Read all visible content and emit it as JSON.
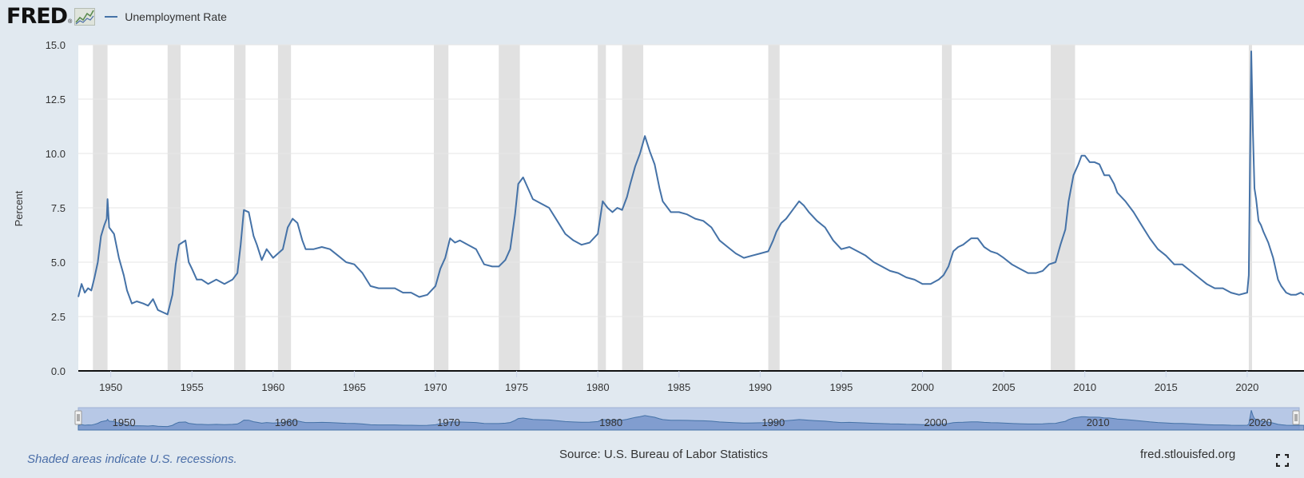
{
  "header": {
    "logo_text": "FRED",
    "registered_mark": "®",
    "legend_label": "Unemployment Rate"
  },
  "footer": {
    "recession_note": "Shaded areas indicate U.S. recessions.",
    "source": "Source: U.S. Bureau of Labor Statistics",
    "site": "fred.stlouisfed.org"
  },
  "icons": [
    "fred-graph-icon",
    "fullscreen-icon",
    "navigator-handle-icon"
  ],
  "colors": {
    "series": "#4572a7",
    "recession": "#e1e1e1",
    "background": "#e1e9f0",
    "navigator_fill": "#b7c8e6",
    "navigator_area": "#6f8fc7"
  },
  "chart_data": {
    "type": "line",
    "title": "",
    "xlabel": "",
    "ylabel": "Percent",
    "xlim": [
      1948.0,
      2023.5
    ],
    "ylim": [
      0,
      15
    ],
    "y_ticks": [
      "0.0",
      "2.5",
      "5.0",
      "7.5",
      "10.0",
      "12.5",
      "15.0"
    ],
    "x_ticks": [
      "1950",
      "1955",
      "1960",
      "1965",
      "1970",
      "1975",
      "1980",
      "1985",
      "1990",
      "1995",
      "2000",
      "2005",
      "2010",
      "2015",
      "2020"
    ],
    "navigator_labels": [
      "1950",
      "1960",
      "1970",
      "1980",
      "1990",
      "2000",
      "2010",
      "2020"
    ],
    "grid": true,
    "recessions": [
      [
        1948.9,
        1949.8
      ],
      [
        1953.5,
        1954.3
      ],
      [
        1957.6,
        1958.3
      ],
      [
        1960.3,
        1961.1
      ],
      [
        1969.9,
        1970.8
      ],
      [
        1973.9,
        1975.2
      ],
      [
        1980.0,
        1980.5
      ],
      [
        1981.5,
        1982.8
      ],
      [
        1990.5,
        1991.2
      ],
      [
        2001.2,
        2001.8
      ],
      [
        2007.9,
        2009.4
      ],
      [
        2020.1,
        2020.3
      ]
    ],
    "series": [
      {
        "name": "Unemployment Rate",
        "x": [
          1948.0,
          1948.2,
          1948.4,
          1948.6,
          1948.8,
          1949.0,
          1949.2,
          1949.4,
          1949.6,
          1949.75,
          1949.8,
          1949.9,
          1950.2,
          1950.5,
          1950.8,
          1951.0,
          1951.3,
          1951.6,
          1952.0,
          1952.3,
          1952.6,
          1952.9,
          1953.2,
          1953.5,
          1953.8,
          1954.0,
          1954.2,
          1954.4,
          1954.6,
          1954.8,
          1955.0,
          1955.3,
          1955.6,
          1956.0,
          1956.5,
          1957.0,
          1957.5,
          1957.8,
          1958.0,
          1958.2,
          1958.5,
          1958.8,
          1959.0,
          1959.3,
          1959.6,
          1960.0,
          1960.3,
          1960.6,
          1960.9,
          1961.2,
          1961.5,
          1961.8,
          1962.0,
          1962.5,
          1963.0,
          1963.5,
          1964.0,
          1964.5,
          1965.0,
          1965.5,
          1966.0,
          1966.5,
          1967.0,
          1967.5,
          1968.0,
          1968.5,
          1969.0,
          1969.5,
          1970.0,
          1970.3,
          1970.6,
          1970.9,
          1971.2,
          1971.5,
          1972.0,
          1972.5,
          1973.0,
          1973.5,
          1973.9,
          1974.3,
          1974.6,
          1974.9,
          1975.1,
          1975.4,
          1975.7,
          1976.0,
          1976.5,
          1977.0,
          1977.5,
          1978.0,
          1978.5,
          1979.0,
          1979.5,
          1980.0,
          1980.3,
          1980.6,
          1980.9,
          1981.2,
          1981.5,
          1981.8,
          1982.0,
          1982.3,
          1982.6,
          1982.9,
          1983.2,
          1983.5,
          1983.8,
          1984.0,
          1984.5,
          1985.0,
          1985.5,
          1986.0,
          1986.5,
          1987.0,
          1987.5,
          1988.0,
          1988.5,
          1989.0,
          1989.5,
          1990.0,
          1990.5,
          1990.8,
          1991.0,
          1991.3,
          1991.6,
          1992.0,
          1992.4,
          1992.7,
          1993.0,
          1993.5,
          1994.0,
          1994.5,
          1995.0,
          1995.5,
          1996.0,
          1996.5,
          1997.0,
          1997.5,
          1998.0,
          1998.5,
          1999.0,
          1999.5,
          2000.0,
          2000.5,
          2001.0,
          2001.3,
          2001.6,
          2001.9,
          2002.2,
          2002.5,
          2003.0,
          2003.4,
          2003.8,
          2004.2,
          2004.6,
          2005.0,
          2005.5,
          2006.0,
          2006.5,
          2007.0,
          2007.4,
          2007.8,
          2008.2,
          2008.5,
          2008.8,
          2009.0,
          2009.3,
          2009.6,
          2009.8,
          2010.0,
          2010.3,
          2010.6,
          2010.9,
          2011.2,
          2011.5,
          2011.8,
          2012.0,
          2012.5,
          2013.0,
          2013.5,
          2014.0,
          2014.5,
          2015.0,
          2015.5,
          2016.0,
          2016.5,
          2017.0,
          2017.5,
          2018.0,
          2018.5,
          2019.0,
          2019.5,
          2020.0,
          2020.1,
          2020.25,
          2020.35,
          2020.45,
          2020.55,
          2020.7,
          2020.85,
          2021.0,
          2021.3,
          2021.6,
          2021.9,
          2022.1,
          2022.4,
          2022.7,
          2023.0,
          2023.3,
          2023.5
        ],
        "y": [
          3.4,
          4.0,
          3.6,
          3.8,
          3.7,
          4.3,
          5.0,
          6.2,
          6.7,
          7.0,
          7.9,
          6.6,
          6.3,
          5.2,
          4.4,
          3.7,
          3.1,
          3.2,
          3.1,
          3.0,
          3.3,
          2.8,
          2.7,
          2.6,
          3.5,
          4.9,
          5.8,
          5.9,
          6.0,
          5.0,
          4.7,
          4.2,
          4.2,
          4.0,
          4.2,
          4.0,
          4.2,
          4.5,
          5.8,
          7.4,
          7.3,
          6.2,
          5.8,
          5.1,
          5.6,
          5.2,
          5.4,
          5.6,
          6.6,
          7.0,
          6.8,
          6.0,
          5.6,
          5.6,
          5.7,
          5.6,
          5.3,
          5.0,
          4.9,
          4.5,
          3.9,
          3.8,
          3.8,
          3.8,
          3.6,
          3.6,
          3.4,
          3.5,
          3.9,
          4.7,
          5.2,
          6.1,
          5.9,
          6.0,
          5.8,
          5.6,
          4.9,
          4.8,
          4.8,
          5.1,
          5.6,
          7.2,
          8.6,
          8.9,
          8.4,
          7.9,
          7.7,
          7.5,
          6.9,
          6.3,
          6.0,
          5.8,
          5.9,
          6.3,
          7.8,
          7.5,
          7.3,
          7.5,
          7.4,
          8.0,
          8.6,
          9.4,
          10.0,
          10.8,
          10.1,
          9.5,
          8.4,
          7.8,
          7.3,
          7.3,
          7.2,
          7.0,
          6.9,
          6.6,
          6.0,
          5.7,
          5.4,
          5.2,
          5.3,
          5.4,
          5.5,
          6.0,
          6.4,
          6.8,
          7.0,
          7.4,
          7.8,
          7.6,
          7.3,
          6.9,
          6.6,
          6.0,
          5.6,
          5.7,
          5.5,
          5.3,
          5.0,
          4.8,
          4.6,
          4.5,
          4.3,
          4.2,
          4.0,
          4.0,
          4.2,
          4.4,
          4.8,
          5.5,
          5.7,
          5.8,
          6.1,
          6.1,
          5.7,
          5.5,
          5.4,
          5.2,
          4.9,
          4.7,
          4.5,
          4.5,
          4.6,
          4.9,
          5.0,
          5.8,
          6.5,
          7.8,
          9.0,
          9.5,
          9.9,
          9.9,
          9.6,
          9.6,
          9.5,
          9.0,
          9.0,
          8.6,
          8.2,
          7.8,
          7.3,
          6.7,
          6.1,
          5.6,
          5.3,
          4.9,
          4.9,
          4.6,
          4.3,
          4.0,
          3.8,
          3.8,
          3.6,
          3.5,
          3.6,
          4.4,
          14.7,
          11.1,
          8.4,
          7.9,
          6.9,
          6.7,
          6.4,
          5.9,
          5.2,
          4.2,
          3.9,
          3.6,
          3.5,
          3.5,
          3.6,
          3.5
        ]
      }
    ]
  }
}
